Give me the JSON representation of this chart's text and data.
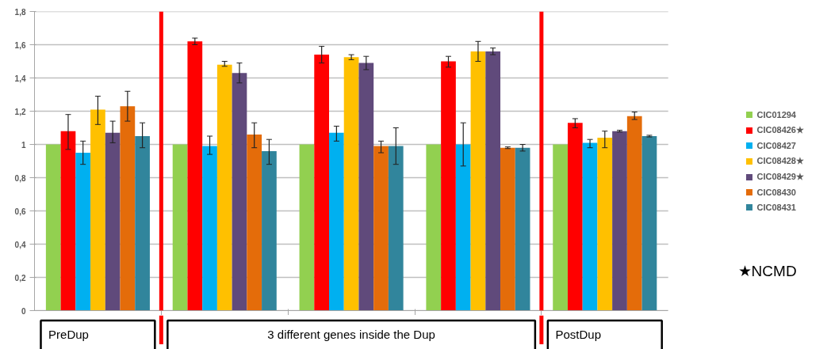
{
  "chart_data": {
    "type": "bar",
    "categories": [
      null,
      null,
      null,
      null,
      null
    ],
    "series": [
      {
        "name": "CIC01294",
        "color": "#92d050",
        "values": [
          1,
          1,
          1,
          1,
          1
        ]
      },
      {
        "name": "CIC08426★",
        "color": "#ff0000",
        "values": [
          1.08,
          1.62,
          1.54,
          1.5,
          1.13
        ],
        "errors": [
          [
            0.97,
            1.18
          ],
          [
            1.6,
            1.64
          ],
          [
            1.49,
            1.59
          ],
          [
            1.465,
            1.53
          ],
          [
            1.1,
            1.155
          ]
        ]
      },
      {
        "name": "CIC08427",
        "color": "#00b0f0",
        "values": [
          0.95,
          0.99,
          1.07,
          1.0,
          1.01
        ],
        "errors": [
          [
            0.88,
            1.02
          ],
          [
            0.94,
            1.05
          ],
          [
            1.02,
            1.11
          ],
          [
            0.87,
            1.13
          ],
          [
            0.98,
            1.03
          ]
        ]
      },
      {
        "name": "CIC08428★",
        "color": "#ffc000",
        "values": [
          1.21,
          1.48,
          1.525,
          1.56,
          1.04
        ],
        "errors": [
          [
            1.12,
            1.29
          ],
          [
            1.47,
            1.5
          ],
          [
            1.51,
            1.54
          ],
          [
            1.5,
            1.62
          ],
          [
            0.98,
            1.08
          ]
        ]
      },
      {
        "name": "CIC08429★",
        "color": "#604a7b",
        "values": [
          1.07,
          1.43,
          1.49,
          1.56,
          1.08
        ],
        "errors": [
          [
            1.01,
            1.14
          ],
          [
            1.37,
            1.49
          ],
          [
            1.45,
            1.53
          ],
          [
            1.54,
            1.58
          ],
          [
            1.075,
            1.085
          ]
        ]
      },
      {
        "name": "CIC08430",
        "color": "#e46c0a",
        "values": [
          1.23,
          1.06,
          0.99,
          0.98,
          1.17
        ],
        "errors": [
          [
            1.14,
            1.32
          ],
          [
            0.98,
            1.13
          ],
          [
            0.95,
            1.02
          ],
          [
            0.975,
            0.985
          ],
          [
            1.15,
            1.195
          ]
        ]
      },
      {
        "name": "CIC08431",
        "color": "#31859c",
        "values": [
          1.05,
          0.96,
          0.99,
          0.98,
          1.05
        ],
        "errors": [
          [
            0.98,
            1.13
          ],
          [
            0.88,
            1.03
          ],
          [
            0.88,
            1.1
          ],
          [
            0.96,
            1.0
          ],
          [
            1.045,
            1.055
          ]
        ]
      }
    ],
    "ylim": [
      0,
      1.8
    ],
    "yticks": [
      0,
      {
        "value": 0.2,
        "label": "0,2"
      },
      {
        "value": 0.4,
        "label": "0,4"
      },
      {
        "value": 0.6,
        "label": "0,6"
      },
      {
        "value": 0.8,
        "label": "0,8"
      },
      1,
      {
        "value": 1.2,
        "label": "1,2"
      },
      {
        "value": 1.4,
        "label": "1,4"
      },
      {
        "value": 1.6,
        "label": "1,6"
      },
      {
        "value": 1.8,
        "label": "1,8"
      }
    ],
    "grid": "y",
    "legend": "right",
    "annotations": [
      "PreDup",
      "3 different genes inside the Dup",
      "PostDup",
      "★NCMD"
    ]
  }
}
